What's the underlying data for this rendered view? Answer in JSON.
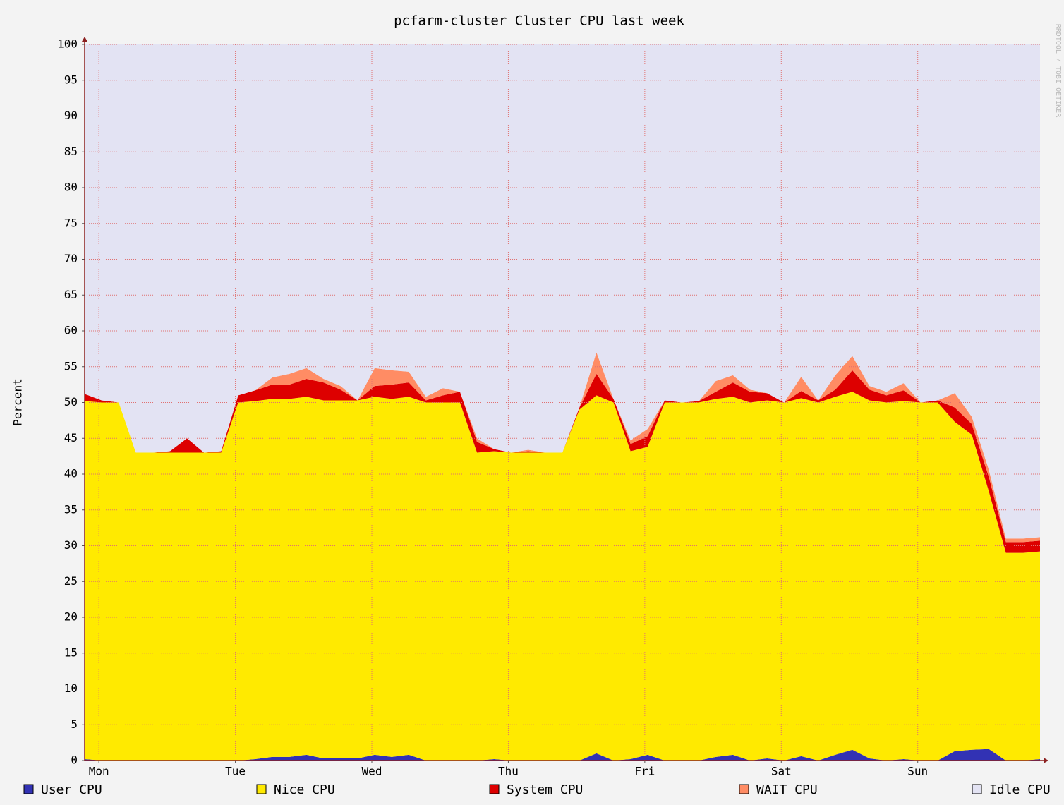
{
  "chart_data": {
    "type": "stacked_area",
    "title": "pcfarm-cluster Cluster CPU last week",
    "ylabel": "Percent",
    "watermark": "RRDTOOL / TOBI OETIKER",
    "x": [
      0,
      3,
      6,
      9,
      12,
      15,
      18,
      21,
      24,
      27,
      30,
      33,
      36,
      39,
      42,
      45,
      48,
      51,
      54,
      57,
      60,
      63,
      66,
      69,
      72,
      75,
      78,
      81,
      84,
      87,
      90,
      93,
      96,
      99,
      102,
      105,
      108,
      111,
      114,
      117,
      120,
      123,
      126,
      129,
      132,
      135,
      138,
      141,
      144,
      147,
      150,
      153,
      156,
      159,
      162,
      165,
      168
    ],
    "xlim": [
      0,
      168
    ],
    "xticks": [
      {
        "value": 2.5,
        "label": "Mon"
      },
      {
        "value": 26.5,
        "label": "Tue"
      },
      {
        "value": 50.5,
        "label": "Wed"
      },
      {
        "value": 74.5,
        "label": "Thu"
      },
      {
        "value": 98.5,
        "label": "Fri"
      },
      {
        "value": 122.5,
        "label": "Sat"
      },
      {
        "value": 146.5,
        "label": "Sun"
      }
    ],
    "ylim": [
      0,
      100
    ],
    "yticks": [
      0,
      5,
      10,
      15,
      20,
      25,
      30,
      35,
      40,
      45,
      50,
      55,
      60,
      65,
      70,
      75,
      80,
      85,
      90,
      95,
      100
    ],
    "grid": true,
    "series": [
      {
        "name": "User CPU",
        "color": "#3232b4",
        "values": [
          0.2,
          0,
          0,
          0,
          0,
          0,
          0,
          0,
          0,
          0,
          0.2,
          0.5,
          0.5,
          0.8,
          0.3,
          0.3,
          0.3,
          0.8,
          0.5,
          0.8,
          0,
          0,
          0,
          0,
          0.2,
          0,
          0,
          0,
          0,
          0,
          1,
          0,
          0.2,
          0.8,
          0,
          0,
          0,
          0.5,
          0.8,
          0,
          0.3,
          0,
          0.6,
          0,
          0.8,
          1.5,
          0.3,
          0,
          0.2,
          0,
          0,
          1.3,
          1.5,
          1.6,
          0,
          0,
          0.2
        ]
      },
      {
        "name": "Nice CPU",
        "color": "#ffea00",
        "values": [
          50,
          50,
          50,
          43,
          43,
          43,
          43,
          43,
          43,
          50,
          50,
          50,
          50,
          50,
          50,
          50,
          50,
          50,
          50,
          50,
          50,
          50,
          50,
          43,
          43,
          43,
          43,
          43,
          43,
          49,
          50,
          50,
          43,
          43,
          50,
          50,
          50,
          50,
          50,
          50,
          50,
          50,
          50,
          50,
          50,
          50,
          50,
          50,
          50,
          50,
          50,
          46,
          44,
          36,
          29,
          29,
          29
        ]
      },
      {
        "name": "System CPU",
        "color": "#dd0000",
        "values": [
          1,
          0.3,
          0,
          0,
          0,
          0.2,
          2,
          0,
          0.2,
          1,
          1.5,
          2,
          2,
          2.5,
          2.5,
          1.5,
          0,
          1.5,
          2,
          2,
          0.3,
          1,
          1.5,
          1.5,
          0.3,
          0,
          0.2,
          0,
          0,
          0.3,
          3,
          0.5,
          1,
          1.5,
          0.3,
          0,
          0.2,
          1,
          2,
          1.5,
          1,
          0,
          1,
          0.3,
          1,
          3,
          1.5,
          1,
          1.5,
          0,
          0.3,
          2,
          1.5,
          2,
          1.5,
          1.5,
          1.5
        ]
      },
      {
        "name": "WAIT CPU",
        "color": "#ff8c64",
        "values": [
          0,
          0,
          0,
          0,
          0,
          0,
          0,
          0,
          0,
          0,
          0,
          1,
          1.5,
          1.5,
          0.5,
          0.5,
          0,
          2.5,
          2,
          1.5,
          0.5,
          1,
          0,
          0.5,
          0,
          0,
          0.2,
          0,
          0,
          0,
          3,
          0,
          0.5,
          1,
          0,
          0,
          0,
          1.5,
          1,
          0.3,
          0,
          0,
          2,
          0,
          2,
          2,
          0.5,
          0.5,
          1,
          0,
          0,
          2,
          1,
          1,
          0.5,
          0.5,
          0.5
        ]
      },
      {
        "name": "Idle CPU",
        "color": "#e3e3f3",
        "values": [
          48.8,
          49.7,
          50,
          57,
          57,
          56.8,
          55,
          57,
          56.8,
          49,
          48.3,
          46.5,
          46,
          45.2,
          46.7,
          47.7,
          49.7,
          45.2,
          45.5,
          45.7,
          49.2,
          48,
          48.5,
          55,
          56.5,
          57,
          56.6,
          57,
          57,
          50.7,
          43,
          49.5,
          55.3,
          53.7,
          49.7,
          50,
          49.8,
          47,
          46.2,
          48.2,
          48.7,
          50,
          46.4,
          49.7,
          46.2,
          43.5,
          47.7,
          48.5,
          47.3,
          50,
          49.7,
          48.7,
          52,
          59.4,
          69,
          69,
          68.8
        ]
      }
    ]
  }
}
